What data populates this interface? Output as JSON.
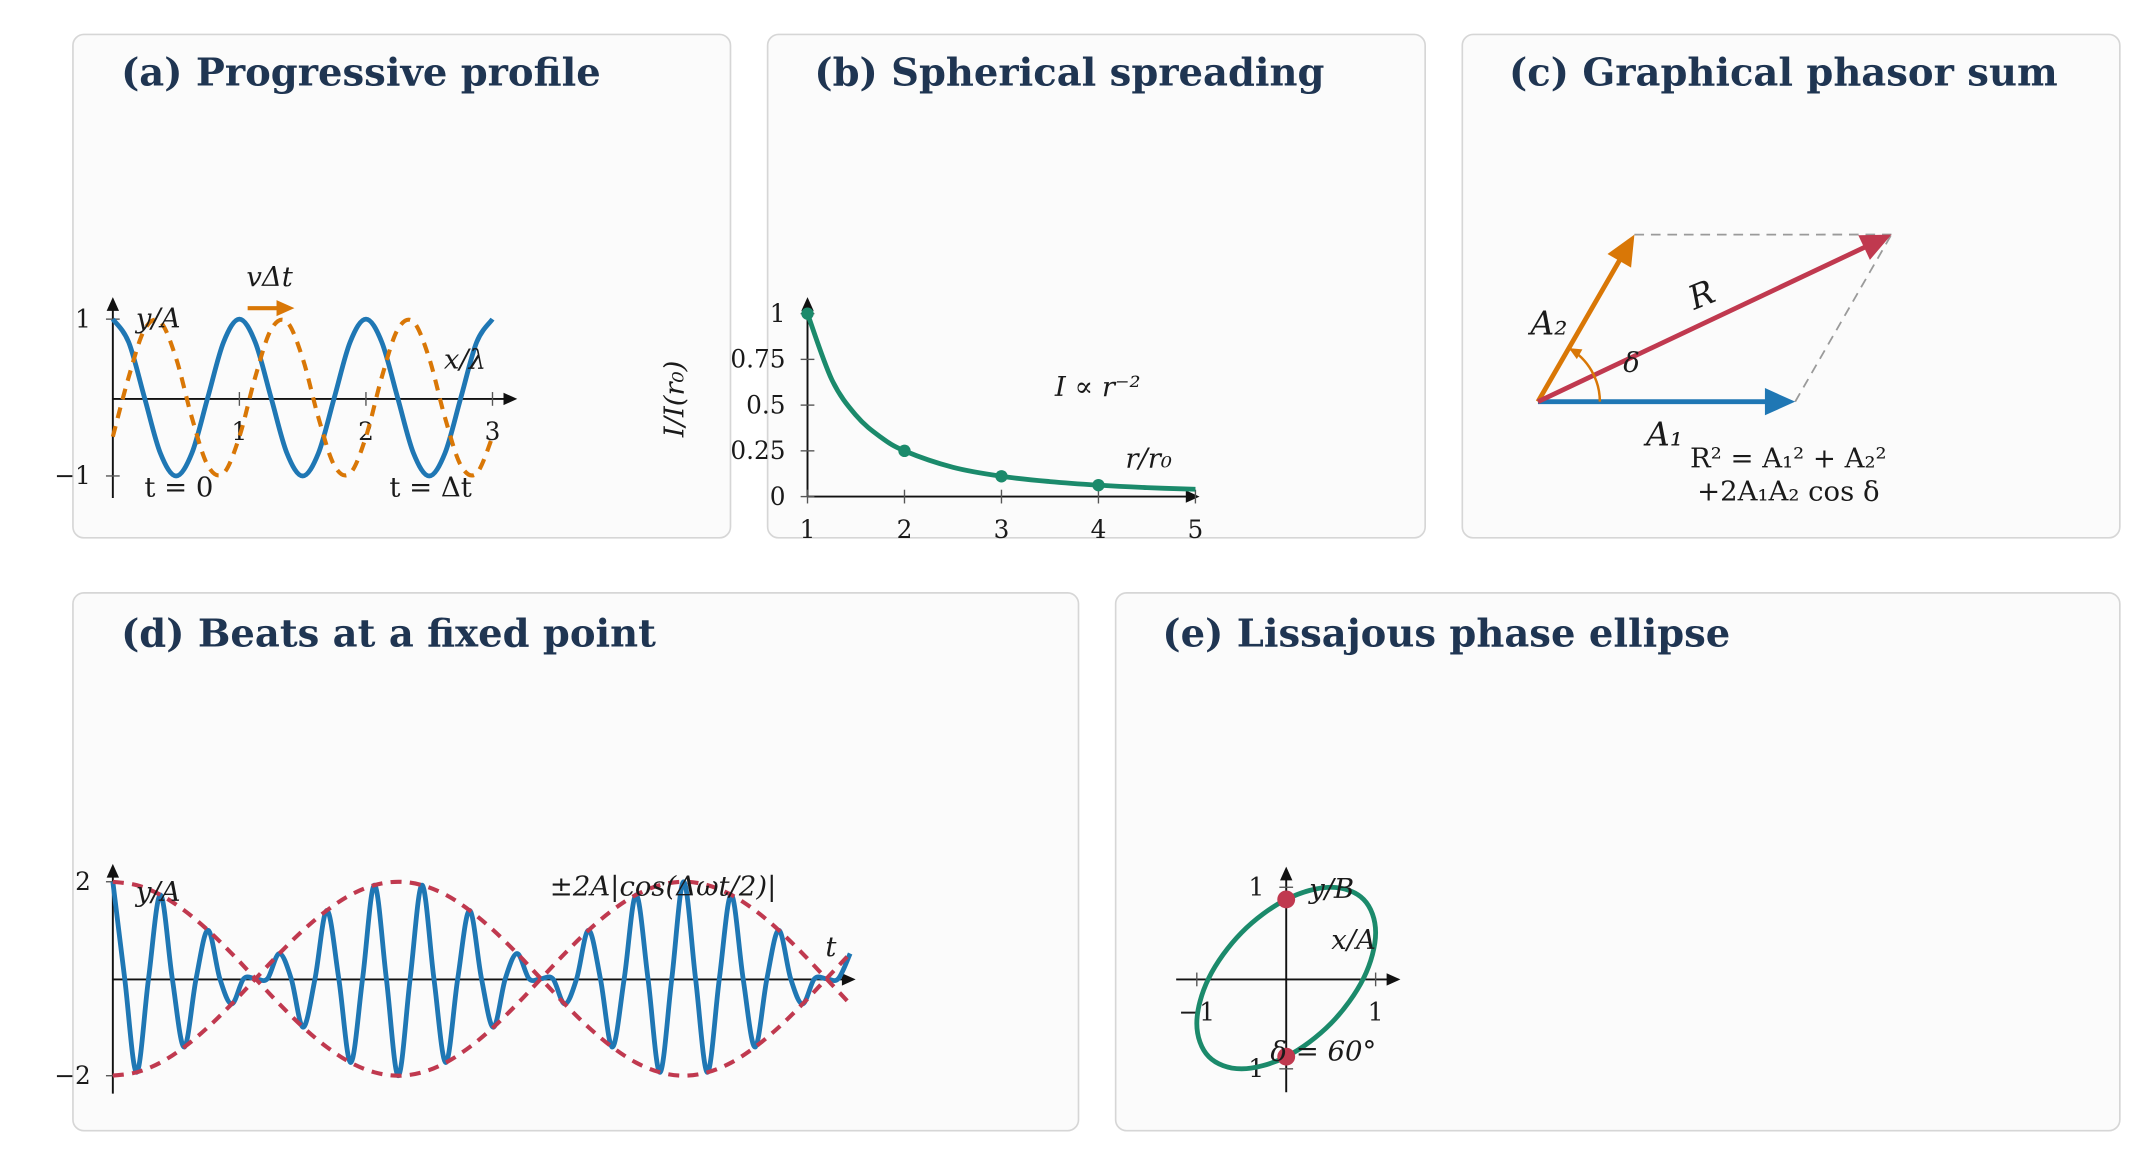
{
  "chart_data": [
    {
      "type": "line",
      "title": "(a) Progressive profile",
      "xlabel": "x/λ",
      "ylabel": "y/A",
      "x": [
        0,
        0.125,
        0.25,
        0.375,
        0.5,
        0.625,
        0.75,
        0.875,
        1,
        1.125,
        1.25,
        1.375,
        1.5,
        1.625,
        1.75,
        1.875,
        2,
        2.125,
        2.25,
        2.375,
        2.5,
        2.625,
        2.75,
        2.875,
        3
      ],
      "series": [
        {
          "name": "t = 0",
          "color": "#1f77b4",
          "values": [
            1,
            0.707,
            0,
            -0.707,
            -1,
            -0.707,
            0,
            0.707,
            1,
            0.707,
            0,
            -0.707,
            -1,
            -0.707,
            0,
            0.707,
            1,
            0.707,
            0,
            -0.707,
            -1,
            -0.707,
            0,
            0.707,
            1
          ]
        },
        {
          "name": "t = Δt",
          "color": "#d97706",
          "dashed": true,
          "values": [
            -0.5,
            0.259,
            0.866,
            0.966,
            0.5,
            -0.259,
            -0.866,
            -0.966,
            -0.5,
            0.259,
            0.866,
            0.966,
            0.5,
            -0.259,
            -0.866,
            -0.966,
            -0.5,
            0.259,
            0.866,
            0.966,
            0.5,
            -0.259,
            -0.866,
            -0.966,
            -0.5
          ]
        }
      ],
      "annotations": [
        "vΔt"
      ],
      "xlim": [
        0,
        3
      ],
      "ylim": [
        -1,
        1
      ],
      "xticks": [
        1,
        2,
        3
      ],
      "yticks": [
        {
          "value": -1,
          "label": "−1"
        },
        1
      ]
    },
    {
      "type": "line",
      "title": "(b) Spherical spreading",
      "xlabel": "r/r₀",
      "ylabel": "I/I(r₀)",
      "series": [
        {
          "color": "#1b8a6b",
          "x": [
            1,
            1.25,
            1.5,
            1.75,
            2,
            2.5,
            3,
            3.5,
            4,
            4.5,
            5
          ],
          "values": [
            1,
            0.64,
            0.444,
            0.327,
            0.25,
            0.16,
            0.111,
            0.082,
            0.0625,
            0.049,
            0.04
          ]
        },
        {
          "color": "#1b8a6b",
          "markers": true,
          "x": [
            1,
            2,
            3,
            4
          ],
          "values": [
            1,
            0.25,
            0.111,
            0.0625
          ]
        }
      ],
      "annotations": [
        "I ∝ r⁻²"
      ],
      "xlim": [
        1,
        5
      ],
      "ylim": [
        0,
        1
      ],
      "xticks": [
        1,
        2,
        3,
        4,
        5
      ],
      "yticks": [
        0,
        0.25,
        0.5,
        0.75,
        1
      ]
    },
    {
      "type": "phasor",
      "title": "(c) Graphical phasor sum",
      "vectors": [
        {
          "label": "A₁",
          "length": 2,
          "angle": 0,
          "color": "#1f77b4"
        },
        {
          "label": "A₂",
          "length": 1.5,
          "angle": 60,
          "color": "#d97706"
        },
        {
          "label": "R",
          "length": 3.04,
          "angle": 25.3,
          "color": "#c0394f"
        }
      ],
      "angle_label": "δ",
      "formula": [
        "R² = A₁² + A₂²",
        "+2A₁A₂ cos δ"
      ]
    },
    {
      "type": "line",
      "title": "(d) Beats at a fixed point",
      "xlabel": "t",
      "ylabel": "y/A",
      "series": [
        {
          "color": "#1f77b4",
          "x": [
            0,
            0.25,
            0.5,
            0.75,
            1,
            1.25,
            1.5,
            1.75,
            2,
            2.25,
            2.5,
            2.75,
            3,
            3.25,
            3.5,
            3.75,
            4,
            4.25,
            4.5,
            4.75,
            5,
            5.25,
            5.5,
            5.75,
            6,
            6.25,
            6.5,
            6.75,
            7,
            7.25,
            7.5,
            7.75,
            8,
            8.25,
            8.5,
            8.75,
            9,
            9.25,
            9.5,
            9.75,
            10,
            10.25,
            10.5,
            10.75,
            11,
            11.25,
            11.5,
            11.75,
            12,
            12.25,
            12.5,
            12.75,
            13,
            13.25,
            13.5,
            13.75,
            14,
            14.25,
            14.5,
            14.75,
            15,
            15.25,
            15.5
          ],
          "values": [
            2,
            0,
            -1.93,
            0,
            1.73,
            0,
            -1.41,
            0,
            1,
            0,
            -0.52,
            0,
            0,
            0,
            0.52,
            0,
            -1,
            0,
            1.41,
            0,
            -1.73,
            0,
            1.93,
            0,
            -2,
            0,
            1.93,
            0,
            -1.73,
            0,
            1.41,
            0,
            -1,
            0,
            0.52,
            0,
            0,
            0,
            -0.52,
            0,
            1,
            0,
            -1.41,
            0,
            1.73,
            0,
            -1.93,
            0,
            2,
            0,
            -1.93,
            0,
            1.73,
            0,
            -1.41,
            0,
            1,
            0,
            -0.52,
            0,
            0,
            0,
            0.52
          ]
        },
        {
          "color": "#c0394f",
          "dashed": true,
          "x": [
            0,
            0.5,
            1,
            1.5,
            2,
            2.5,
            3,
            3.5,
            4,
            4.5,
            5,
            5.5,
            6,
            6.5,
            7,
            7.5,
            8,
            8.5,
            9,
            9.5,
            10,
            10.5,
            11,
            11.5,
            12,
            12.5,
            13,
            13.5,
            14,
            14.5,
            15,
            15.5
          ],
          "values": [
            2,
            1.93,
            1.73,
            1.41,
            1,
            0.52,
            0,
            -0.52,
            -1,
            -1.41,
            -1.73,
            -1.93,
            -2,
            -1.93,
            -1.73,
            -1.41,
            -1,
            -0.52,
            0,
            0.52,
            1,
            1.41,
            1.73,
            1.93,
            2,
            1.93,
            1.73,
            1.41,
            1,
            0.52,
            0,
            -0.52
          ]
        },
        {
          "color": "#c0394f",
          "dashed": true,
          "x": [
            0,
            0.5,
            1,
            1.5,
            2,
            2.5,
            3,
            3.5,
            4,
            4.5,
            5,
            5.5,
            6,
            6.5,
            7,
            7.5,
            8,
            8.5,
            9,
            9.5,
            10,
            10.5,
            11,
            11.5,
            12,
            12.5,
            13,
            13.5,
            14,
            14.5,
            15,
            15.5
          ],
          "values": [
            -2,
            -1.93,
            -1.73,
            -1.41,
            -1,
            -0.52,
            0,
            0.52,
            1,
            1.41,
            1.73,
            1.93,
            2,
            1.93,
            1.73,
            1.41,
            1,
            0.52,
            0,
            -0.52,
            -1,
            -1.41,
            -1.73,
            -1.93,
            -2,
            -1.93,
            -1.73,
            -1.41,
            -1,
            -0.52,
            0,
            0.52
          ]
        }
      ],
      "annotations": [
        "±2A|cos(Δωt/2)|"
      ],
      "xlim": [
        0,
        15.5
      ],
      "ylim": [
        -2,
        2
      ],
      "yticks": [
        {
          "value": -2,
          "label": "−2"
        },
        2
      ]
    },
    {
      "type": "line",
      "title": "(e) Lissajous phase ellipse",
      "xlabel": "x/A",
      "ylabel": "y/B",
      "series": [
        {
          "color": "#1b8a6b",
          "closed": true,
          "x": [
            1,
            0.866,
            0.5,
            0,
            -0.5,
            -0.866,
            -1,
            -0.866,
            -0.5,
            0,
            0.5,
            0.866
          ],
          "values": [
            0.5,
            0.866,
            1,
            0.866,
            0.5,
            0,
            -0.5,
            -0.866,
            -1,
            -0.866,
            -0.5,
            0
          ]
        },
        {
          "color": "#c0394f",
          "markers": true,
          "x": [
            0,
            0
          ],
          "values": [
            0.866,
            -0.866
          ]
        }
      ],
      "annotations": [
        "δ = 60°"
      ],
      "xlim": [
        -1,
        1
      ],
      "ylim": [
        -1,
        1
      ],
      "xticks": [
        {
          "value": -1,
          "label": "−1"
        },
        1
      ],
      "yticks": [
        {
          "value": -1,
          "label": "−1"
        },
        1
      ]
    }
  ]
}
